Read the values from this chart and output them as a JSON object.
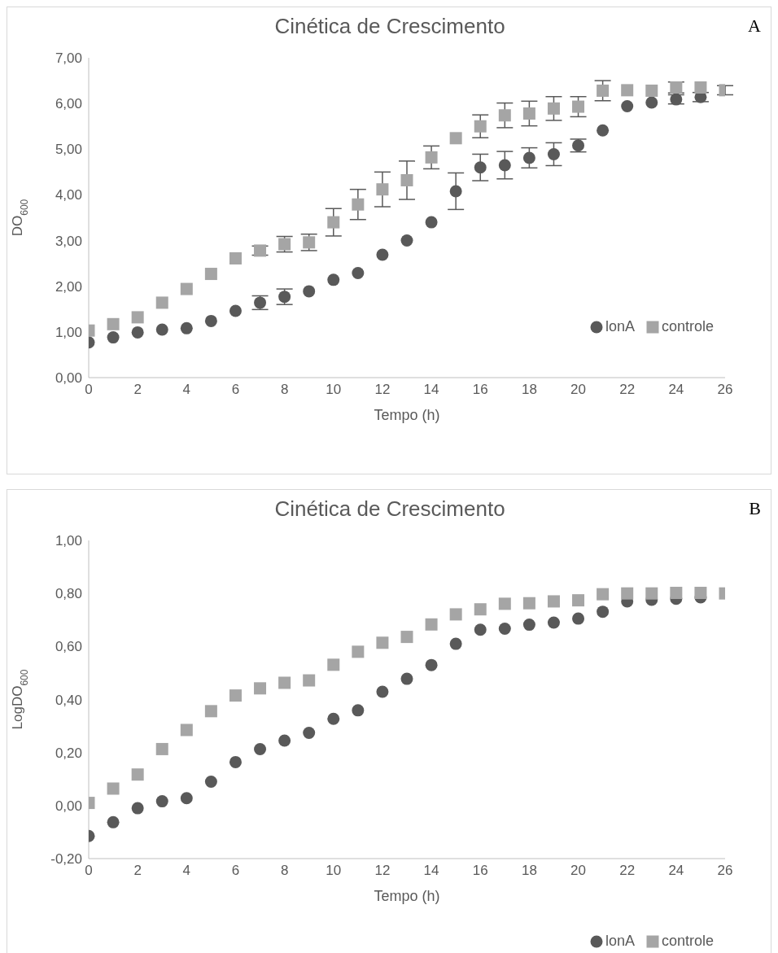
{
  "chart_data": [
    {
      "type": "scatter",
      "title": "Cinética de Crescimento",
      "xlabel": "Tempo (h)",
      "ylabel": "DO$_{600}$",
      "annotations": [
        "A"
      ],
      "x": [
        0,
        1,
        2,
        3,
        4,
        5,
        6,
        7,
        8,
        9,
        10,
        11,
        12,
        13,
        14,
        15,
        16,
        17,
        18,
        19,
        20,
        21,
        22,
        23,
        24,
        25,
        26
      ],
      "xlim": [
        0,
        26
      ],
      "xticks": [
        0,
        2,
        4,
        6,
        8,
        10,
        12,
        14,
        16,
        18,
        20,
        22,
        24,
        26
      ],
      "ylim": [
        0,
        7
      ],
      "yticks": [
        {
          "value": 0,
          "label": "0,00"
        },
        {
          "value": 1,
          "label": "1,00"
        },
        {
          "value": 2,
          "label": "2,00"
        },
        {
          "value": 3,
          "label": "3,00"
        },
        {
          "value": 4,
          "label": "4,00"
        },
        {
          "value": 5,
          "label": "5,00"
        },
        {
          "value": 6,
          "label": "6,00"
        },
        {
          "value": 7,
          "label": "7,00"
        }
      ],
      "grid": false,
      "legend": "bottom right",
      "series": [
        {
          "name": "lonA",
          "color": "#595959",
          "marker": "circle",
          "values": [
            0.77,
            0.88,
            0.99,
            1.05,
            1.08,
            1.24,
            1.46,
            1.64,
            1.77,
            1.89,
            2.14,
            2.29,
            2.69,
            3.0,
            3.4,
            4.08,
            4.6,
            4.65,
            4.81,
            4.89,
            5.08,
            5.41,
            5.94,
            6.02,
            6.09,
            6.14,
            null
          ],
          "errors": [
            null,
            null,
            null,
            null,
            null,
            null,
            null,
            0.15,
            0.17,
            null,
            null,
            null,
            null,
            null,
            null,
            0.4,
            0.29,
            0.3,
            0.22,
            0.25,
            0.14,
            null,
            null,
            null,
            0.1,
            0.1,
            null
          ]
        },
        {
          "name": "controle",
          "color": "#a5a5a5",
          "marker": "square",
          "values": [
            1.03,
            1.17,
            1.32,
            1.64,
            1.94,
            2.27,
            2.61,
            2.78,
            2.92,
            2.96,
            3.4,
            3.79,
            4.12,
            4.32,
            4.82,
            5.24,
            5.5,
            5.74,
            5.78,
            5.89,
            5.93,
            6.28,
            6.29,
            6.28,
            6.35,
            6.35,
            6.29
          ],
          "errors": [
            null,
            null,
            null,
            null,
            null,
            null,
            null,
            0.1,
            0.17,
            0.18,
            0.3,
            0.33,
            0.38,
            0.42,
            0.25,
            null,
            0.25,
            0.27,
            0.27,
            0.26,
            0.22,
            0.22,
            null,
            null,
            0.12,
            null,
            0.1
          ]
        }
      ]
    },
    {
      "type": "scatter",
      "title": "Cinética de Crescimento",
      "xlabel": "Tempo (h)",
      "ylabel": "LogDO$_{600}$",
      "annotations": [
        "B"
      ],
      "x": [
        0,
        1,
        2,
        3,
        4,
        5,
        6,
        7,
        8,
        9,
        10,
        11,
        12,
        13,
        14,
        15,
        16,
        17,
        18,
        19,
        20,
        21,
        22,
        23,
        24,
        25,
        26
      ],
      "xlim": [
        0,
        26
      ],
      "xticks": [
        0,
        2,
        4,
        6,
        8,
        10,
        12,
        14,
        16,
        18,
        20,
        22,
        24,
        26
      ],
      "ylim": [
        -0.2,
        1
      ],
      "yticks": [
        {
          "value": -0.2,
          "label": "-0,20"
        },
        {
          "value": 0,
          "label": "0,00"
        },
        {
          "value": 0.2,
          "label": "0,20"
        },
        {
          "value": 0.4,
          "label": "0,40"
        },
        {
          "value": 0.6,
          "label": "0,60"
        },
        {
          "value": 0.8,
          "label": "0,80"
        },
        {
          "value": 1,
          "label": "1,00"
        }
      ],
      "grid": false,
      "legend": "bottom",
      "series": [
        {
          "name": "lonA",
          "color": "#595959",
          "marker": "circle",
          "values": [
            -0.115,
            -0.063,
            -0.01,
            0.016,
            0.028,
            0.09,
            0.164,
            0.213,
            0.245,
            0.274,
            0.327,
            0.359,
            0.429,
            0.478,
            0.53,
            0.61,
            0.663,
            0.667,
            0.682,
            0.69,
            0.705,
            0.731,
            0.77,
            0.776,
            0.78,
            0.785,
            null
          ]
        },
        {
          "name": "controle",
          "color": "#a5a5a5",
          "marker": "square",
          "values": [
            0.01,
            0.064,
            0.117,
            0.213,
            0.285,
            0.356,
            0.415,
            0.442,
            0.463,
            0.472,
            0.531,
            0.58,
            0.614,
            0.636,
            0.683,
            0.721,
            0.74,
            0.761,
            0.763,
            0.77,
            0.774,
            0.797,
            0.8,
            0.8,
            0.802,
            0.802,
            0.8
          ]
        }
      ]
    }
  ]
}
